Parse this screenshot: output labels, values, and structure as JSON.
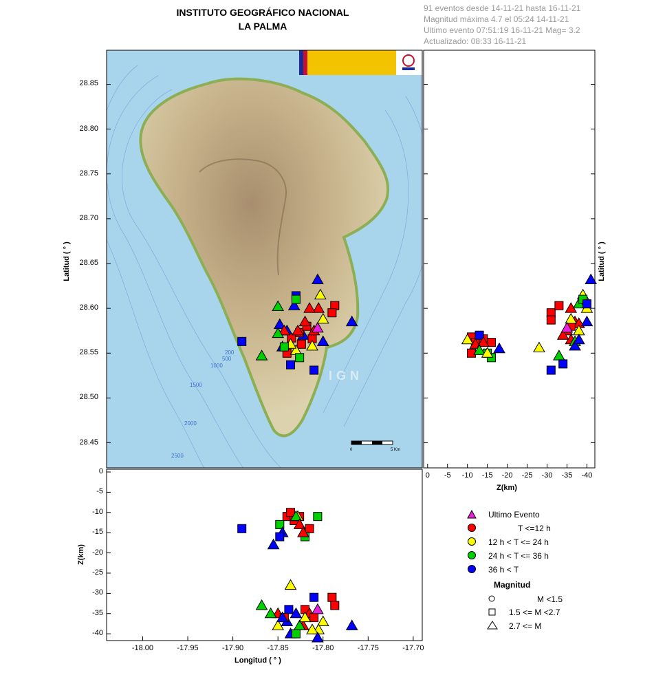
{
  "header": {
    "title_line1": "INSTITUTO GEOGRÁFICO NACIONAL",
    "title_line2": "LA PALMA",
    "info_line1": "91 eventos desde 14-11-21 hasta 16-11-21",
    "info_line2": "Magnitud máxima 4.7 el 05:24 14-11-21",
    "info_line3": "Ultimo evento   07:51:19 16-11-21  Mag= 3.2",
    "info_line4": "Actualizado:  08:33  16-11-21"
  },
  "map": {
    "watermark": "IGN",
    "scale_0": "0",
    "scale_5": "5 Km",
    "contours": [
      "200",
      "500",
      "1000",
      "1500",
      "2000",
      "2500"
    ],
    "colors": {
      "sea": "#a9d5ec",
      "land_low": "#d8cfaa",
      "land_high": "#a88e6e",
      "coast": "#8cae55"
    }
  },
  "legend": {
    "items": [
      {
        "label": "Ultimo Evento",
        "symbol": "triangle",
        "color": "#e81fdc"
      },
      {
        "label": "T <=12 h",
        "symbol": "circle",
        "color": "#ff0000"
      },
      {
        "label": "12 h  < T <= 24 h",
        "symbol": "circle",
        "color": "#ffff00"
      },
      {
        "label": "24 h  < T <= 36 h",
        "symbol": "circle",
        "color": "#00d000"
      },
      {
        "label": "36 h <  T",
        "symbol": "circle",
        "color": "#0000ff"
      }
    ],
    "magnitude_title": "Magnitud",
    "magnitude_items": [
      {
        "label": "M <1.5",
        "symbol": "circle"
      },
      {
        "label": "1.5 <= M <2.7",
        "symbol": "square"
      },
      {
        "label": "2.7 <= M",
        "symbol": "triangle"
      }
    ]
  },
  "chart_data": [
    {
      "type": "scatter",
      "panel": "map",
      "xlabel": "",
      "ylabel": "Latitud ( ° )",
      "xlim": [
        -18.04,
        -17.69
      ],
      "ylim": [
        28.422,
        28.888
      ],
      "y_ticks": [
        "28.85",
        "28.80",
        "28.75",
        "28.70",
        "28.65",
        "28.60",
        "28.55",
        "28.50",
        "28.45"
      ],
      "points": [
        {
          "x": -17.89,
          "y": 28.563,
          "s": "square",
          "c": "blue"
        },
        {
          "x": -17.83,
          "y": 28.614,
          "s": "square",
          "c": "blue"
        },
        {
          "x": -17.836,
          "y": 28.537,
          "s": "square",
          "c": "blue"
        },
        {
          "x": -17.81,
          "y": 28.531,
          "s": "square",
          "c": "blue"
        },
        {
          "x": -17.848,
          "y": 28.582,
          "s": "triangle",
          "c": "blue"
        },
        {
          "x": -17.84,
          "y": 28.575,
          "s": "triangle",
          "c": "blue"
        },
        {
          "x": -17.832,
          "y": 28.603,
          "s": "triangle",
          "c": "blue"
        },
        {
          "x": -17.822,
          "y": 28.57,
          "s": "triangle",
          "c": "blue"
        },
        {
          "x": -17.806,
          "y": 28.632,
          "s": "triangle",
          "c": "blue"
        },
        {
          "x": -17.8,
          "y": 28.563,
          "s": "triangle",
          "c": "blue"
        },
        {
          "x": -17.768,
          "y": 28.585,
          "s": "triangle",
          "c": "blue"
        },
        {
          "x": -17.845,
          "y": 28.557,
          "s": "triangle",
          "c": "blue"
        },
        {
          "x": -17.787,
          "y": 28.603,
          "s": "square",
          "c": "red"
        },
        {
          "x": -17.79,
          "y": 28.595,
          "s": "square",
          "c": "red"
        },
        {
          "x": -17.835,
          "y": 28.567,
          "s": "square",
          "c": "red"
        },
        {
          "x": -17.826,
          "y": 28.573,
          "s": "square",
          "c": "red"
        },
        {
          "x": -17.818,
          "y": 28.58,
          "s": "square",
          "c": "red"
        },
        {
          "x": -17.812,
          "y": 28.566,
          "s": "square",
          "c": "red"
        },
        {
          "x": -17.84,
          "y": 28.55,
          "s": "square",
          "c": "red"
        },
        {
          "x": -17.824,
          "y": 28.56,
          "s": "square",
          "c": "red"
        },
        {
          "x": -17.805,
          "y": 28.6,
          "s": "triangle",
          "c": "red"
        },
        {
          "x": -17.815,
          "y": 28.6,
          "s": "triangle",
          "c": "red"
        },
        {
          "x": -17.82,
          "y": 28.585,
          "s": "triangle",
          "c": "red"
        },
        {
          "x": -17.828,
          "y": 28.575,
          "s": "triangle",
          "c": "red"
        },
        {
          "x": -17.843,
          "y": 28.575,
          "s": "triangle",
          "c": "red"
        },
        {
          "x": -17.81,
          "y": 28.575,
          "s": "triangle",
          "c": "red"
        },
        {
          "x": -17.803,
          "y": 28.615,
          "s": "triangle",
          "c": "yellow"
        },
        {
          "x": -17.8,
          "y": 28.588,
          "s": "triangle",
          "c": "yellow"
        },
        {
          "x": -17.83,
          "y": 28.553,
          "s": "triangle",
          "c": "yellow"
        },
        {
          "x": -17.812,
          "y": 28.558,
          "s": "triangle",
          "c": "yellow"
        },
        {
          "x": -17.836,
          "y": 28.56,
          "s": "triangle",
          "c": "yellow"
        },
        {
          "x": -17.83,
          "y": 28.61,
          "s": "square",
          "c": "green"
        },
        {
          "x": -17.843,
          "y": 28.557,
          "s": "square",
          "c": "green"
        },
        {
          "x": -17.826,
          "y": 28.545,
          "s": "square",
          "c": "green"
        },
        {
          "x": -17.85,
          "y": 28.602,
          "s": "triangle",
          "c": "green"
        },
        {
          "x": -17.868,
          "y": 28.547,
          "s": "triangle",
          "c": "green"
        },
        {
          "x": -17.85,
          "y": 28.572,
          "s": "triangle",
          "c": "green"
        },
        {
          "x": -17.806,
          "y": 28.578,
          "s": "triangle",
          "c": "magenta"
        }
      ]
    },
    {
      "type": "scatter",
      "panel": "latitude-depth",
      "xlabel": "Z(km)",
      "ylabel": "Latitud ( ° )",
      "xlim": [
        1,
        -42
      ],
      "ylim": [
        28.422,
        28.888
      ],
      "x_ticks": [
        "0",
        "-5",
        "-10",
        "-15",
        "-20",
        "-25",
        "-30",
        "-35",
        "-40"
      ],
      "points": [
        {
          "x": -11,
          "y": 28.568,
          "s": "square",
          "c": "red"
        },
        {
          "x": -12,
          "y": 28.562,
          "s": "square",
          "c": "red"
        },
        {
          "x": -11,
          "y": 28.55,
          "s": "square",
          "c": "red"
        },
        {
          "x": -14,
          "y": 28.566,
          "s": "square",
          "c": "red"
        },
        {
          "x": -16,
          "y": 28.562,
          "s": "square",
          "c": "red"
        },
        {
          "x": -13,
          "y": 28.57,
          "s": "square",
          "c": "blue"
        },
        {
          "x": -15,
          "y": 28.55,
          "s": "square",
          "c": "green"
        },
        {
          "x": -16,
          "y": 28.545,
          "s": "square",
          "c": "green"
        },
        {
          "x": -12,
          "y": 28.56,
          "s": "triangle",
          "c": "red"
        },
        {
          "x": -14,
          "y": 28.562,
          "s": "triangle",
          "c": "red"
        },
        {
          "x": -13,
          "y": 28.553,
          "s": "triangle",
          "c": "green"
        },
        {
          "x": -15,
          "y": 28.55,
          "s": "triangle",
          "c": "yellow"
        },
        {
          "x": -18,
          "y": 28.555,
          "s": "triangle",
          "c": "blue"
        },
        {
          "x": -10,
          "y": 28.565,
          "s": "triangle",
          "c": "yellow"
        },
        {
          "x": -28,
          "y": 28.556,
          "s": "triangle",
          "c": "yellow"
        },
        {
          "x": -33,
          "y": 28.547,
          "s": "triangle",
          "c": "green"
        },
        {
          "x": -31,
          "y": 28.531,
          "s": "square",
          "c": "blue"
        },
        {
          "x": -34,
          "y": 28.538,
          "s": "square",
          "c": "blue"
        },
        {
          "x": -31,
          "y": 28.595,
          "s": "square",
          "c": "red"
        },
        {
          "x": -33,
          "y": 28.603,
          "s": "square",
          "c": "red"
        },
        {
          "x": -31,
          "y": 28.587,
          "s": "square",
          "c": "red"
        },
        {
          "x": -35,
          "y": 28.575,
          "s": "triangle",
          "c": "red"
        },
        {
          "x": -36,
          "y": 28.6,
          "s": "triangle",
          "c": "red"
        },
        {
          "x": -37,
          "y": 28.585,
          "s": "triangle",
          "c": "red"
        },
        {
          "x": -38,
          "y": 28.583,
          "s": "triangle",
          "c": "red"
        },
        {
          "x": -36,
          "y": 28.565,
          "s": "triangle",
          "c": "red"
        },
        {
          "x": -34,
          "y": 28.57,
          "s": "triangle",
          "c": "red"
        },
        {
          "x": -36,
          "y": 28.58,
          "s": "square",
          "c": "red"
        },
        {
          "x": -39,
          "y": 28.615,
          "s": "triangle",
          "c": "yellow"
        },
        {
          "x": -40,
          "y": 28.6,
          "s": "triangle",
          "c": "yellow"
        },
        {
          "x": -38,
          "y": 28.575,
          "s": "triangle",
          "c": "yellow"
        },
        {
          "x": -36,
          "y": 28.588,
          "s": "triangle",
          "c": "yellow"
        },
        {
          "x": -38,
          "y": 28.605,
          "s": "triangle",
          "c": "green"
        },
        {
          "x": -39,
          "y": 28.61,
          "s": "square",
          "c": "green"
        },
        {
          "x": -37,
          "y": 28.563,
          "s": "triangle",
          "c": "green"
        },
        {
          "x": -41,
          "y": 28.632,
          "s": "triangle",
          "c": "blue"
        },
        {
          "x": -40,
          "y": 28.605,
          "s": "square",
          "c": "blue"
        },
        {
          "x": -37,
          "y": 28.558,
          "s": "triangle",
          "c": "blue"
        },
        {
          "x": -38,
          "y": 28.565,
          "s": "triangle",
          "c": "blue"
        },
        {
          "x": -40,
          "y": 28.585,
          "s": "triangle",
          "c": "blue"
        },
        {
          "x": -35,
          "y": 28.578,
          "s": "triangle",
          "c": "magenta"
        }
      ]
    },
    {
      "type": "scatter",
      "panel": "longitude-depth",
      "xlabel": "Longitud ( ° )",
      "ylabel": "Z(km)",
      "xlim": [
        -18.04,
        -17.69
      ],
      "ylim": [
        -41,
        0
      ],
      "x_ticks": [
        "-18.00",
        "-17.95",
        "-17.90",
        "-17.85",
        "-17.80",
        "-17.75",
        "-17.70"
      ],
      "y_ticks": [
        "0",
        "-5",
        "-10",
        "-15",
        "-20",
        "-25",
        "-30",
        "-35",
        "-40"
      ],
      "points": [
        {
          "x": -17.89,
          "y": -14,
          "s": "square",
          "c": "blue"
        },
        {
          "x": -17.84,
          "y": -11,
          "s": "square",
          "c": "red"
        },
        {
          "x": -17.836,
          "y": -10,
          "s": "square",
          "c": "red"
        },
        {
          "x": -17.826,
          "y": -11,
          "s": "square",
          "c": "red"
        },
        {
          "x": -17.815,
          "y": -14,
          "s": "square",
          "c": "red"
        },
        {
          "x": -17.832,
          "y": -12,
          "s": "square",
          "c": "red"
        },
        {
          "x": -17.806,
          "y": -11,
          "s": "square",
          "c": "green"
        },
        {
          "x": -17.82,
          "y": -16,
          "s": "square",
          "c": "green"
        },
        {
          "x": -17.848,
          "y": -13,
          "s": "square",
          "c": "green"
        },
        {
          "x": -17.828,
          "y": -11,
          "s": "triangle",
          "c": "yellow"
        },
        {
          "x": -17.83,
          "y": -11,
          "s": "triangle",
          "c": "green"
        },
        {
          "x": -17.826,
          "y": -13,
          "s": "triangle",
          "c": "red"
        },
        {
          "x": -17.822,
          "y": -15,
          "s": "triangle",
          "c": "red"
        },
        {
          "x": -17.845,
          "y": -15,
          "s": "triangle",
          "c": "blue"
        },
        {
          "x": -17.848,
          "y": -16,
          "s": "square",
          "c": "blue"
        },
        {
          "x": -17.855,
          "y": -18,
          "s": "triangle",
          "c": "blue"
        },
        {
          "x": -17.836,
          "y": -28,
          "s": "triangle",
          "c": "yellow"
        },
        {
          "x": -17.79,
          "y": -31,
          "s": "square",
          "c": "red"
        },
        {
          "x": -17.787,
          "y": -33,
          "s": "square",
          "c": "red"
        },
        {
          "x": -17.81,
          "y": -31,
          "s": "square",
          "c": "blue"
        },
        {
          "x": -17.868,
          "y": -33,
          "s": "triangle",
          "c": "green"
        },
        {
          "x": -17.85,
          "y": -35,
          "s": "triangle",
          "c": "red"
        },
        {
          "x": -17.858,
          "y": -35,
          "s": "triangle",
          "c": "green"
        },
        {
          "x": -17.838,
          "y": -34,
          "s": "square",
          "c": "blue"
        },
        {
          "x": -17.83,
          "y": -35,
          "s": "triangle",
          "c": "blue"
        },
        {
          "x": -17.82,
          "y": -34,
          "s": "square",
          "c": "red"
        },
        {
          "x": -17.815,
          "y": -35,
          "s": "triangle",
          "c": "red"
        },
        {
          "x": -17.81,
          "y": -36,
          "s": "square",
          "c": "red"
        },
        {
          "x": -17.806,
          "y": -34,
          "s": "triangle",
          "c": "magenta"
        },
        {
          "x": -17.8,
          "y": -37,
          "s": "triangle",
          "c": "yellow"
        },
        {
          "x": -17.805,
          "y": -39,
          "s": "triangle",
          "c": "yellow"
        },
        {
          "x": -17.768,
          "y": -38,
          "s": "triangle",
          "c": "blue"
        },
        {
          "x": -17.822,
          "y": -38,
          "s": "triangle",
          "c": "red"
        },
        {
          "x": -17.84,
          "y": -37,
          "s": "triangle",
          "c": "blue"
        },
        {
          "x": -17.836,
          "y": -40,
          "s": "triangle",
          "c": "blue"
        },
        {
          "x": -17.826,
          "y": -38,
          "s": "triangle",
          "c": "green"
        },
        {
          "x": -17.85,
          "y": -38,
          "s": "triangle",
          "c": "yellow"
        },
        {
          "x": -17.812,
          "y": -39,
          "s": "triangle",
          "c": "yellow"
        },
        {
          "x": -17.83,
          "y": -40,
          "s": "square",
          "c": "green"
        },
        {
          "x": -17.843,
          "y": -36,
          "s": "square",
          "c": "red"
        },
        {
          "x": -17.82,
          "y": -36,
          "s": "triangle",
          "c": "yellow"
        },
        {
          "x": -17.806,
          "y": -41,
          "s": "triangle",
          "c": "blue"
        },
        {
          "x": -17.845,
          "y": -36,
          "s": "triangle",
          "c": "blue"
        }
      ]
    }
  ]
}
